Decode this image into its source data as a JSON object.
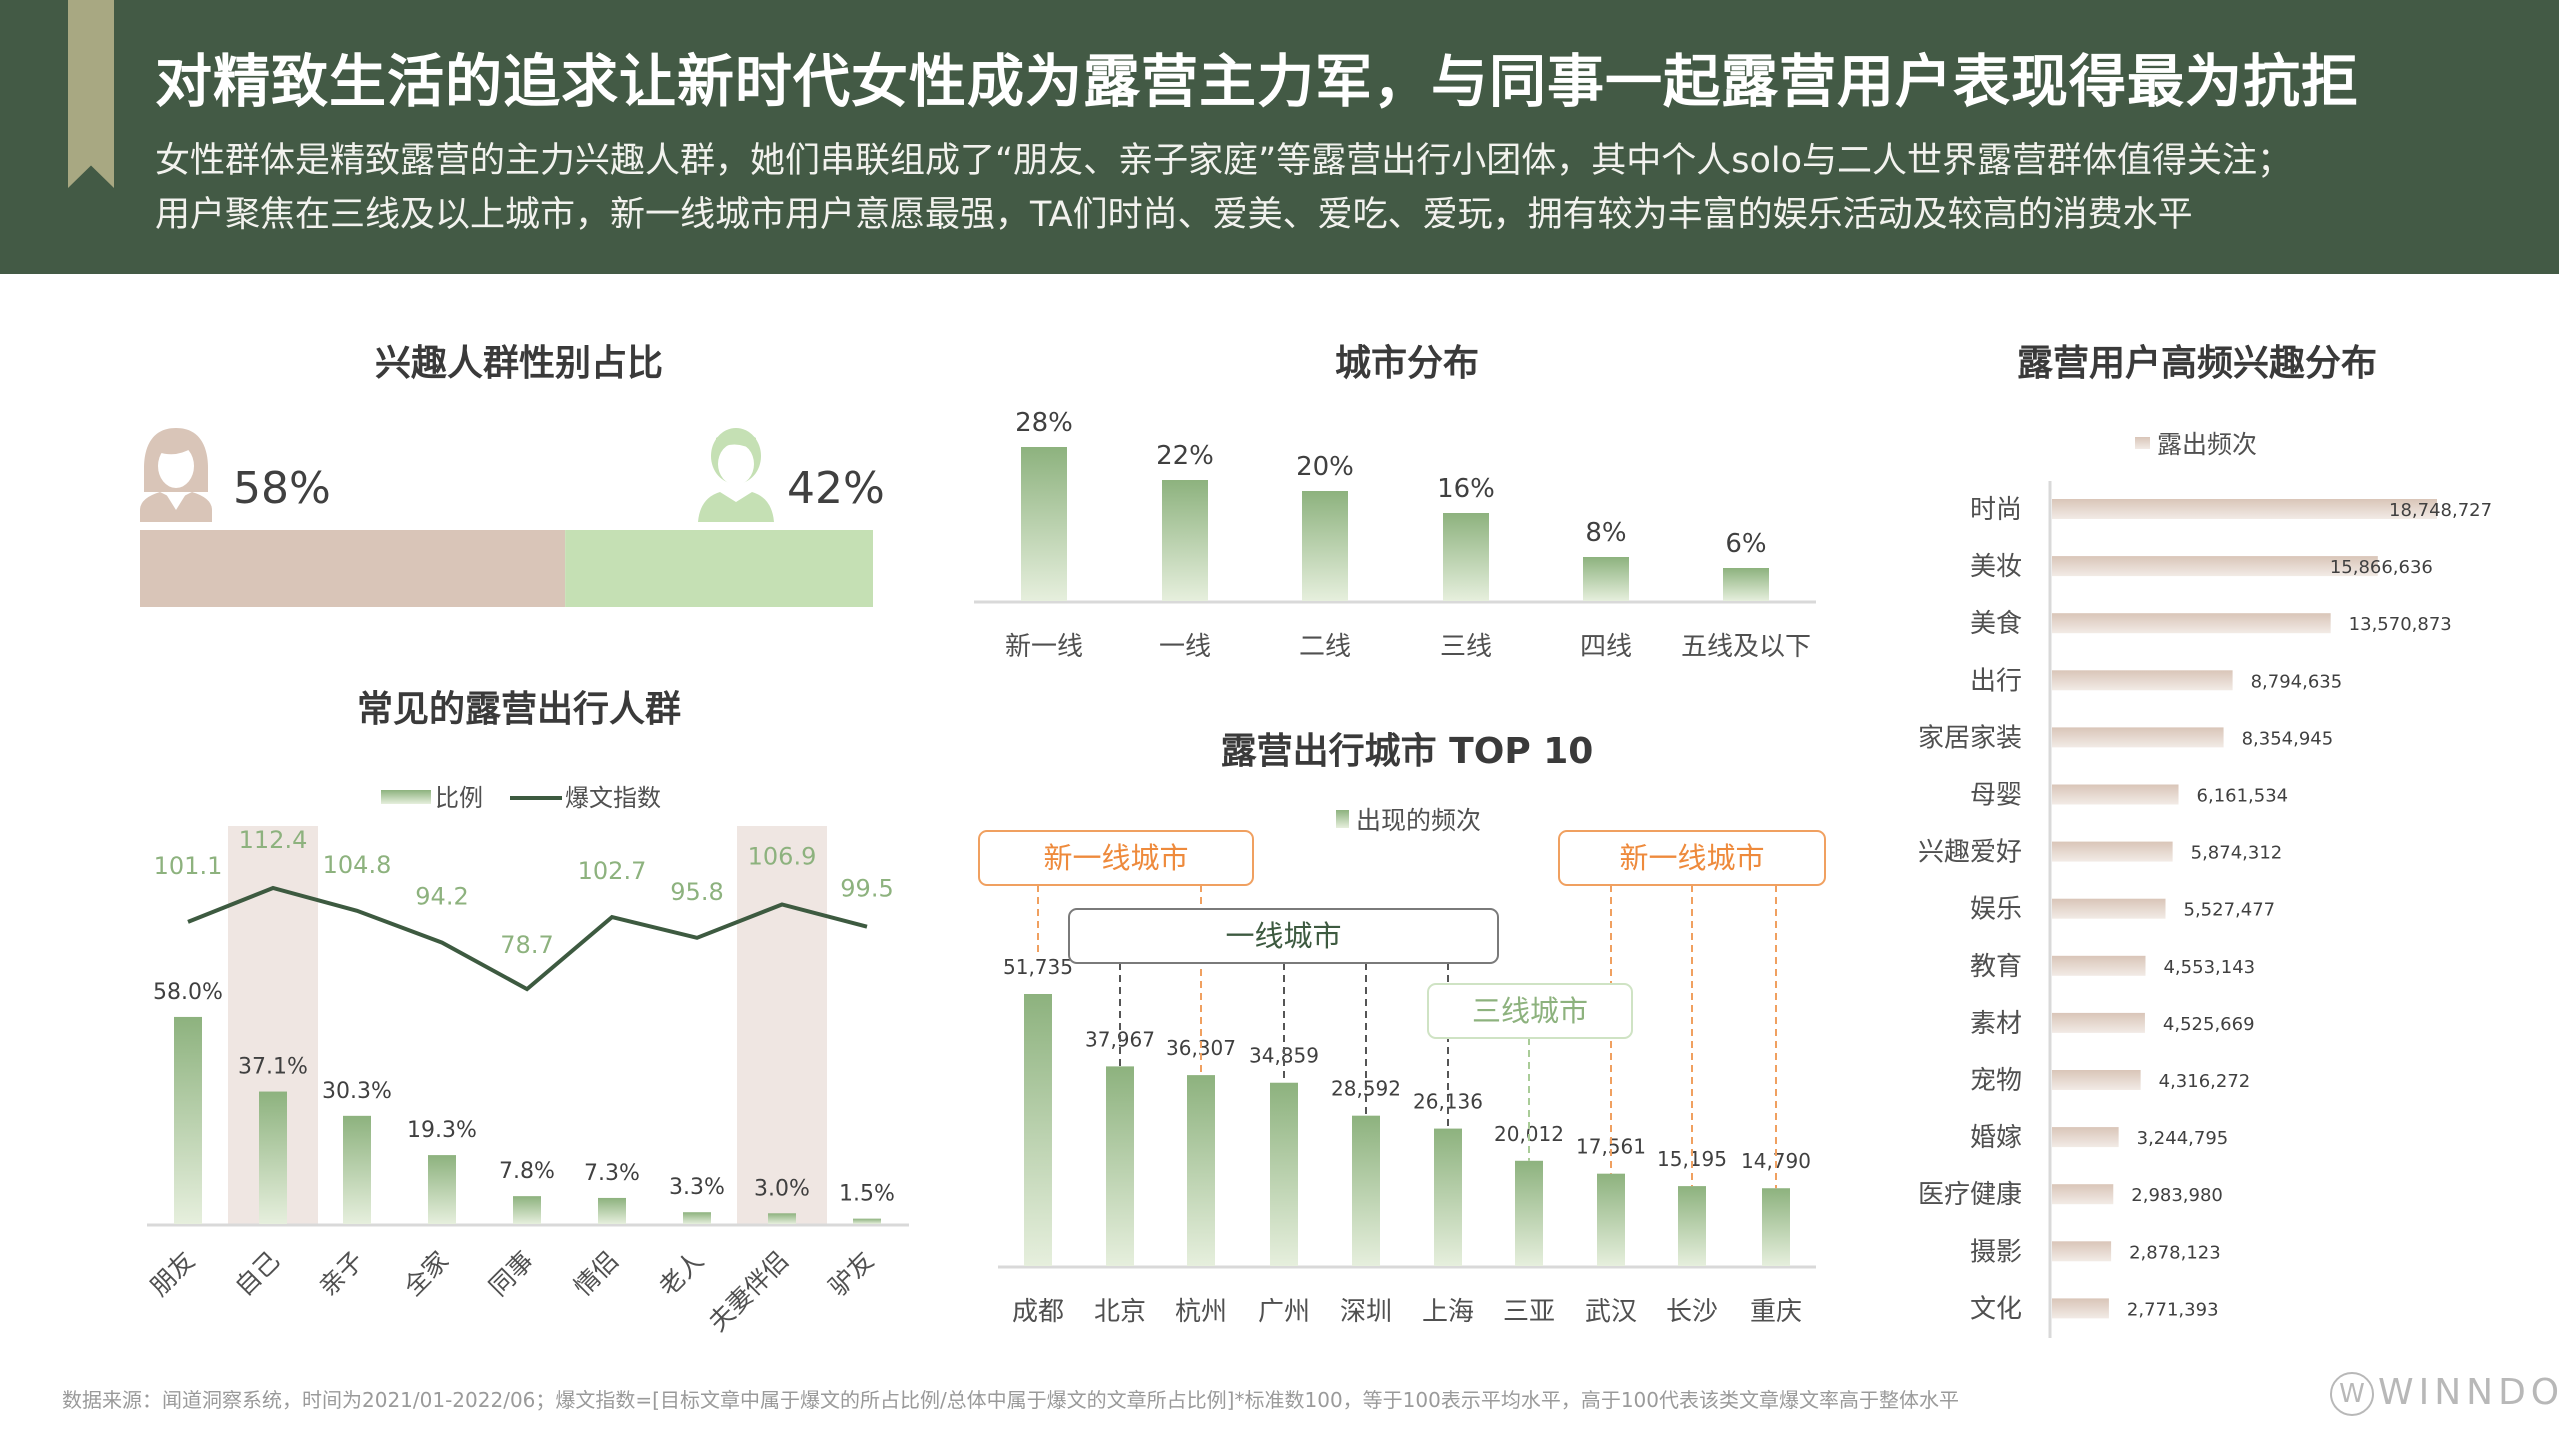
{
  "header": {
    "title": "对精致生活的追求让新时代女性成为露营主力军，与同事一起露营用户表现得最为抗拒",
    "subtitle_lines": [
      "女性群体是精致露营的主力兴趣人群，她们串联组成了“朋友、亲子家庭”等露营出行小团体，其中个人solo与二人世界露营群体值得关注；",
      "用户聚焦在三线及以上城市，新一线城市用户意愿最强，TA们时尚、爱美、爱吃、爱玩，拥有较为丰富的娱乐活动及较高的消费水平"
    ]
  },
  "colors": {
    "header_bg": "#435a45",
    "female": "#d9c5b8",
    "male": "#c5e0b4",
    "bar_green": "#8db27e",
    "line": "#3d5a40",
    "orange": "#f0a060",
    "highlight_band": "#efe6e2"
  },
  "chart_data": [
    {
      "type": "bar",
      "title": "兴趣人群性别占比",
      "categories": [
        "female",
        "male"
      ],
      "icons": [
        "female-icon",
        "male-icon"
      ],
      "values": [
        58,
        42
      ],
      "labels": [
        "58%",
        "42%"
      ]
    },
    {
      "type": "bar",
      "title": "城市分布",
      "categories": [
        "新一线",
        "一线",
        "二线",
        "三线",
        "四线",
        "五线及以下"
      ],
      "values": [
        28,
        22,
        20,
        16,
        8,
        6
      ],
      "labels": [
        "28%",
        "22%",
        "20%",
        "16%",
        "8%",
        "6%"
      ]
    },
    {
      "type": "bar+line",
      "title": "常见的露营出行人群",
      "legend": [
        "比例",
        "爆文指数"
      ],
      "categories": [
        "朋友",
        "自己",
        "亲子",
        "全家",
        "同事",
        "情侣",
        "老人",
        "夫妻伴侣",
        "驴友"
      ],
      "series": [
        {
          "name": "比例",
          "type": "bar",
          "values": [
            58.0,
            37.1,
            30.3,
            19.3,
            7.8,
            7.3,
            3.3,
            3.0,
            1.5
          ],
          "labels": [
            "58.0%",
            "37.1%",
            "30.3%",
            "19.3%",
            "7.8%",
            "7.3%",
            "3.3%",
            "3.0%",
            "1.5%"
          ]
        },
        {
          "name": "爆文指数",
          "type": "line",
          "values": [
            101.1,
            112.4,
            104.8,
            94.2,
            78.7,
            102.7,
            95.8,
            106.9,
            99.5
          ],
          "labels": [
            "101.1",
            "112.4",
            "104.8",
            "94.2",
            "78.7",
            "102.7",
            "95.8",
            "106.9",
            "99.5"
          ]
        }
      ],
      "highlighted": [
        "自己",
        "夫妻伴侣"
      ]
    },
    {
      "type": "bar",
      "title": "露营出行城市 TOP 10",
      "legend": [
        "出现的频次"
      ],
      "categories": [
        "成都",
        "北京",
        "杭州",
        "广州",
        "深圳",
        "上海",
        "三亚",
        "武汉",
        "长沙",
        "重庆"
      ],
      "values": [
        51735,
        37967,
        36307,
        34859,
        28592,
        26136,
        20012,
        17561,
        15195,
        14790
      ],
      "labels": [
        "51,735",
        "37,967",
        "36,307",
        "34,859",
        "28,592",
        "26,136",
        "20,012",
        "17,561",
        "15,195",
        "14,790"
      ],
      "annotations": [
        {
          "text": "新一线城市",
          "cities": [
            "成都",
            "杭州"
          ]
        },
        {
          "text": "一线城市",
          "cities": [
            "北京",
            "广州",
            "深圳",
            "上海"
          ]
        },
        {
          "text": "三线城市",
          "cities": [
            "三亚"
          ]
        },
        {
          "text": "新一线城市",
          "cities": [
            "武汉",
            "长沙",
            "重庆"
          ]
        }
      ]
    },
    {
      "type": "bar-horizontal",
      "title": "露营用户高频兴趣分布",
      "legend": [
        "露出频次"
      ],
      "categories": [
        "时尚",
        "美妆",
        "美食",
        "出行",
        "家居家装",
        "母婴",
        "兴趣爱好",
        "娱乐",
        "教育",
        "素材",
        "宠物",
        "婚嫁",
        "医疗健康",
        "摄影",
        "文化"
      ],
      "values": [
        18748727,
        15866636,
        13570873,
        8794635,
        8354945,
        6161534,
        5874312,
        5527477,
        4553143,
        4525669,
        4316272,
        3244795,
        2983980,
        2878123,
        2771393
      ],
      "labels": [
        "18,748,727",
        "15,866,636",
        "13,570,873",
        "8,794,635",
        "8,354,945",
        "6,161,534",
        "5,874,312",
        "5,527,477",
        "4,553,143",
        "4,525,669",
        "4,316,272",
        "3,244,795",
        "2,983,980",
        "2,878,123",
        "2,771,393"
      ]
    }
  ],
  "footer": {
    "note": "数据来源：闻道洞察系统，时间为2021/01-2022/06；爆文指数=[目标文章中属于爆文的所占比例/总体中属于爆文的文章所占比例]*标准数100，等于100表示平均水平，高于100代表该类文章爆文率高于整体水平",
    "logo": "WINNDOO"
  }
}
